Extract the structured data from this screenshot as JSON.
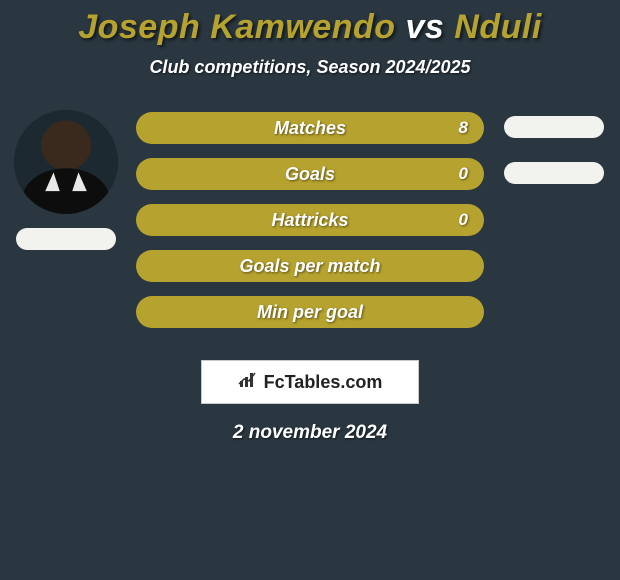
{
  "title": {
    "player1": "Joseph Kamwendo",
    "vs": "vs",
    "player2": "Nduli",
    "player1_color": "#b6a22e",
    "vs_color": "#ffffff",
    "player2_color": "#b6a22e"
  },
  "subtitle": "Club competitions, Season 2024/2025",
  "bar_color": "#b6a22e",
  "text_color": "#ffffff",
  "background_color": "#2a3740",
  "pill_color_left": "#f2f2ef",
  "pill_color_right": "#f2f2ef",
  "stats": [
    {
      "label": "Matches",
      "value": "8"
    },
    {
      "label": "Goals",
      "value": "0"
    },
    {
      "label": "Hattricks",
      "value": "0"
    },
    {
      "label": "Goals per match",
      "value": ""
    },
    {
      "label": "Min per goal",
      "value": ""
    }
  ],
  "left_pill_count": 1,
  "right_pill_count": 2,
  "brand": "FcTables.com",
  "date": "2 november 2024"
}
